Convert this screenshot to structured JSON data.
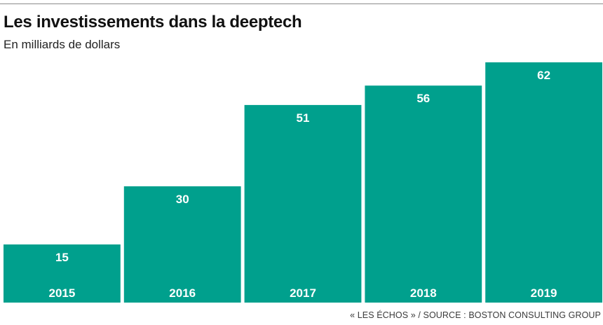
{
  "chart_data": {
    "type": "bar",
    "title": "Les investissements dans la deeptech",
    "subtitle": "En milliards de dollars",
    "categories": [
      "2015",
      "2016",
      "2017",
      "2018",
      "2019"
    ],
    "values": [
      15,
      30,
      51,
      56,
      62
    ],
    "ylim": [
      0,
      62
    ],
    "grid": false,
    "bar_color": "#00a08d",
    "label_color": "#ffffff"
  },
  "source": "« LES ÉCHOS » / SOURCE : BOSTON CONSULTING GROUP"
}
